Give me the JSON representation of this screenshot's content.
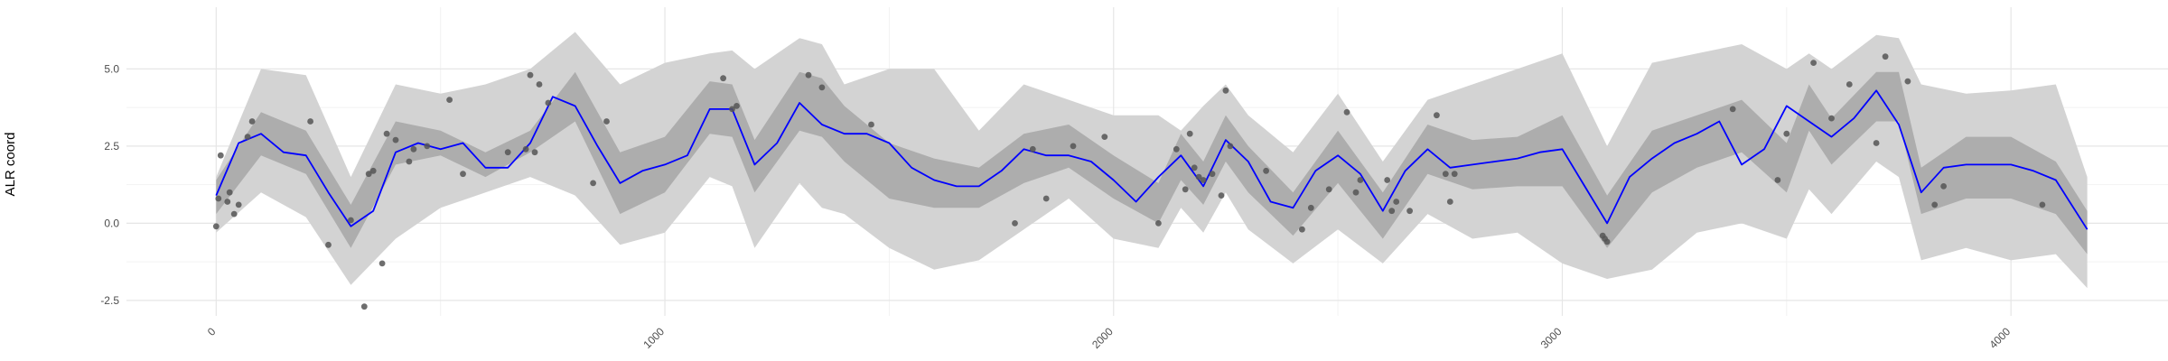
{
  "chart_data": {
    "type": "line",
    "title": "",
    "xlabel": "",
    "ylabel": "ALR coord",
    "xlim": [
      -200,
      4350
    ],
    "ylim": [
      -3.0,
      7.0
    ],
    "x_ticks": [
      0,
      1000,
      2000,
      3000,
      4000
    ],
    "x_tick_labels": [
      "0",
      "1000",
      "2000",
      "3000",
      "4000"
    ],
    "y_ticks": [
      -2.5,
      0.0,
      2.5,
      5.0
    ],
    "y_tick_labels": [
      "-2.5",
      "0.0",
      "2.5",
      "5.0"
    ],
    "grid": true,
    "series": [
      {
        "role": "outer_band",
        "color": "#d3d3d3",
        "x": [
          0,
          100,
          200,
          300,
          400,
          500,
          600,
          700,
          800,
          900,
          1000,
          1100,
          1150,
          1200,
          1300,
          1350,
          1400,
          1500,
          1600,
          1700,
          1800,
          1900,
          2000,
          2100,
          2150,
          2200,
          2250,
          2300,
          2400,
          2500,
          2600,
          2700,
          2800,
          2900,
          3000,
          3100,
          3200,
          3300,
          3400,
          3500,
          3550,
          3600,
          3700,
          3750,
          3800,
          3900,
          4000,
          4100,
          4170
        ],
        "lower": [
          -0.3,
          1.0,
          0.2,
          -2.0,
          -0.5,
          0.5,
          1.0,
          1.5,
          0.9,
          -0.7,
          -0.3,
          1.5,
          1.2,
          -0.8,
          1.3,
          0.5,
          0.3,
          -0.8,
          -1.5,
          -1.2,
          -0.2,
          0.8,
          -0.5,
          -0.8,
          0.5,
          -0.3,
          1.0,
          -0.2,
          -1.3,
          -0.2,
          -1.3,
          0.3,
          -0.5,
          -0.3,
          -1.3,
          -1.8,
          -1.5,
          -0.3,
          0.0,
          -0.5,
          1.1,
          0.3,
          2.0,
          1.5,
          -1.2,
          -0.8,
          -1.2,
          -1.0,
          -2.1
        ],
        "upper": [
          1.5,
          5.0,
          4.8,
          1.5,
          4.5,
          4.2,
          4.5,
          5.0,
          6.2,
          4.5,
          5.2,
          5.5,
          5.6,
          5.0,
          6.0,
          5.8,
          4.5,
          5.0,
          5.0,
          3.0,
          4.5,
          4.0,
          3.5,
          3.5,
          3.0,
          3.8,
          4.5,
          3.5,
          2.3,
          4.2,
          2.0,
          4.0,
          4.5,
          5.0,
          5.5,
          2.5,
          5.2,
          5.5,
          5.8,
          5.0,
          5.5,
          5.0,
          6.1,
          6.0,
          4.5,
          4.2,
          4.3,
          4.5,
          1.5
        ]
      },
      {
        "role": "inner_band",
        "color": "#adadad",
        "x": [
          0,
          100,
          200,
          300,
          400,
          500,
          600,
          700,
          800,
          900,
          1000,
          1100,
          1150,
          1200,
          1300,
          1350,
          1400,
          1500,
          1600,
          1700,
          1800,
          1900,
          2000,
          2100,
          2150,
          2200,
          2250,
          2300,
          2400,
          2500,
          2600,
          2700,
          2800,
          2900,
          3000,
          3100,
          3200,
          3300,
          3400,
          3500,
          3550,
          3600,
          3700,
          3750,
          3800,
          3900,
          4000,
          4100,
          4170
        ],
        "lower": [
          0.3,
          2.2,
          1.6,
          -0.8,
          1.9,
          2.2,
          1.5,
          2.3,
          3.3,
          0.3,
          1.0,
          2.9,
          2.8,
          1.0,
          3.0,
          2.8,
          2.0,
          0.8,
          0.5,
          0.5,
          1.3,
          1.8,
          0.8,
          0.0,
          1.4,
          0.6,
          2.0,
          1.0,
          -0.4,
          1.3,
          -0.5,
          1.6,
          1.1,
          1.2,
          1.2,
          -0.8,
          1.0,
          1.8,
          2.3,
          1.0,
          3.0,
          1.9,
          3.3,
          3.3,
          0.3,
          0.8,
          0.8,
          0.3,
          -1.0
        ],
        "upper": [
          1.4,
          3.6,
          3.0,
          0.6,
          3.3,
          3.0,
          2.3,
          3.0,
          4.9,
          2.3,
          2.8,
          4.6,
          4.5,
          2.7,
          4.9,
          4.7,
          3.8,
          2.6,
          2.1,
          1.8,
          2.9,
          3.2,
          2.2,
          1.3,
          2.9,
          2.0,
          3.5,
          2.5,
          1.0,
          3.0,
          1.0,
          3.2,
          2.7,
          2.8,
          3.5,
          0.9,
          3.0,
          3.5,
          4.0,
          2.6,
          4.5,
          3.4,
          4.9,
          4.9,
          1.8,
          2.8,
          2.8,
          2.0,
          0.4
        ]
      },
      {
        "role": "mean_line",
        "color": "#0000ff",
        "x": [
          0,
          50,
          100,
          150,
          200,
          250,
          300,
          350,
          400,
          450,
          500,
          550,
          600,
          650,
          700,
          750,
          800,
          850,
          900,
          950,
          1000,
          1050,
          1100,
          1150,
          1200,
          1250,
          1300,
          1350,
          1400,
          1450,
          1500,
          1550,
          1600,
          1650,
          1700,
          1750,
          1800,
          1850,
          1900,
          1950,
          2000,
          2050,
          2100,
          2150,
          2200,
          2250,
          2300,
          2350,
          2400,
          2450,
          2500,
          2550,
          2600,
          2650,
          2700,
          2750,
          2800,
          2850,
          2900,
          2950,
          3000,
          3050,
          3100,
          3150,
          3200,
          3250,
          3300,
          3350,
          3400,
          3450,
          3500,
          3550,
          3600,
          3650,
          3700,
          3750,
          3800,
          3850,
          3900,
          3950,
          4000,
          4050,
          4100,
          4170
        ],
        "values": [
          0.9,
          2.6,
          2.9,
          2.3,
          2.2,
          1.0,
          -0.1,
          0.4,
          2.3,
          2.6,
          2.4,
          2.6,
          1.8,
          1.8,
          2.6,
          4.1,
          3.8,
          2.5,
          1.3,
          1.7,
          1.9,
          2.2,
          3.7,
          3.7,
          1.9,
          2.6,
          3.9,
          3.2,
          2.9,
          2.9,
          2.6,
          1.8,
          1.4,
          1.2,
          1.2,
          1.7,
          2.4,
          2.2,
          2.2,
          2.0,
          1.4,
          0.7,
          1.5,
          2.2,
          1.2,
          2.7,
          2.0,
          0.7,
          0.5,
          1.7,
          2.2,
          1.6,
          0.4,
          1.7,
          2.4,
          1.8,
          1.9,
          2.0,
          2.1,
          2.3,
          2.4,
          1.2,
          0.0,
          1.5,
          2.1,
          2.6,
          2.9,
          3.3,
          1.9,
          2.4,
          3.8,
          3.3,
          2.8,
          3.4,
          4.3,
          3.2,
          1.0,
          1.8,
          1.9,
          1.9,
          1.9,
          1.7,
          1.4,
          -0.2
        ]
      },
      {
        "role": "points",
        "type": "scatter",
        "color": "#555555",
        "x": [
          0,
          5,
          10,
          25,
          30,
          40,
          50,
          70,
          80,
          210,
          250,
          300,
          330,
          340,
          350,
          370,
          380,
          400,
          430,
          440,
          470,
          520,
          550,
          650,
          690,
          700,
          710,
          720,
          740,
          840,
          870,
          1130,
          1150,
          1160,
          1320,
          1350,
          1460,
          1780,
          1820,
          1850,
          1910,
          1980,
          2100,
          2140,
          2160,
          2170,
          2180,
          2190,
          2200,
          2220,
          2240,
          2250,
          2260,
          2340,
          2420,
          2440,
          2480,
          2520,
          2540,
          2550,
          2610,
          2620,
          2630,
          2660,
          2720,
          2740,
          2750,
          2760,
          3090,
          3095,
          3100,
          3380,
          3480,
          3500,
          3560,
          3600,
          3640,
          3700,
          3720,
          3770,
          3830,
          3850,
          4070
        ],
        "y": [
          -0.1,
          0.8,
          2.2,
          0.7,
          1.0,
          0.3,
          0.6,
          2.8,
          3.3,
          3.3,
          -0.7,
          0.1,
          -2.7,
          1.6,
          1.7,
          -1.3,
          2.9,
          2.7,
          2.0,
          2.4,
          2.5,
          4.0,
          1.6,
          2.3,
          2.4,
          4.8,
          2.3,
          4.5,
          3.9,
          1.3,
          3.3,
          4.7,
          3.7,
          3.8,
          4.8,
          4.4,
          3.2,
          0.0,
          2.4,
          0.8,
          2.5,
          2.8,
          0.0,
          2.4,
          1.1,
          2.9,
          1.8,
          1.5,
          1.4,
          1.6,
          0.9,
          4.3,
          2.5,
          1.7,
          -0.2,
          0.5,
          1.1,
          3.6,
          1.0,
          1.4,
          1.4,
          0.4,
          0.7,
          0.4,
          3.5,
          1.6,
          0.7,
          1.6,
          -0.4,
          -0.5,
          -0.6,
          3.7,
          1.4,
          2.9,
          5.2,
          3.4,
          4.5,
          2.6,
          5.4,
          4.6,
          0.6,
          1.2,
          0.6
        ]
      }
    ]
  }
}
